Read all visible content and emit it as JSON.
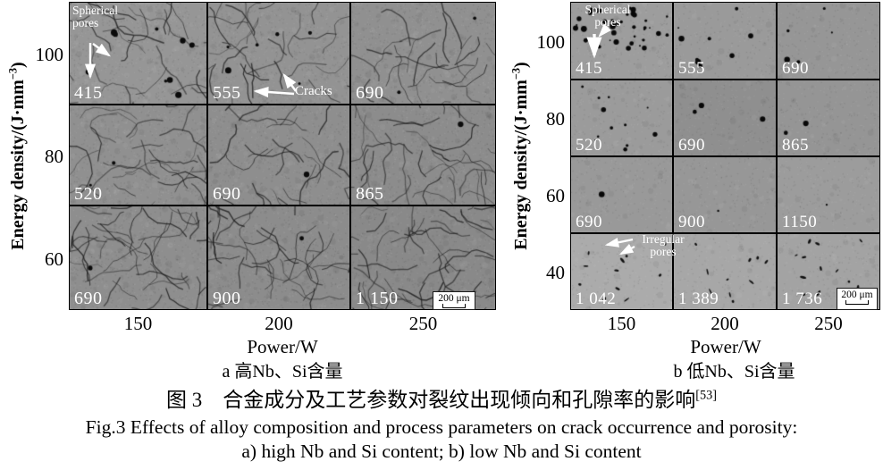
{
  "panels": {
    "a": {
      "y_axis": {
        "label_pre": "Energy density/(J·mm",
        "label_sup": "−3",
        "label_post": ")",
        "ticks": [
          "100",
          "80",
          "60"
        ]
      },
      "x_axis": {
        "label": "Power/W",
        "ticks": [
          "150",
          "200",
          "250"
        ]
      },
      "rows": [
        [
          "415",
          "555",
          "690"
        ],
        [
          "520",
          "690",
          "865"
        ],
        [
          "690",
          "900",
          "1 150"
        ]
      ],
      "annotations": {
        "spherical_pores": "Spherical pores",
        "cracks": "Cracks"
      },
      "scale_bar": "200 μm",
      "caption": "a 高Nb、Si含量"
    },
    "b": {
      "y_axis": {
        "label_pre": "Energy density/(J·mm",
        "label_sup": "−3",
        "label_post": ")",
        "ticks": [
          "100",
          "80",
          "60",
          "40"
        ]
      },
      "x_axis": {
        "label": "Power/W",
        "ticks": [
          "150",
          "200",
          "250"
        ]
      },
      "rows": [
        [
          "415",
          "555",
          "690"
        ],
        [
          "520",
          "690",
          "865"
        ],
        [
          "690",
          "900",
          "1150"
        ],
        [
          "1 042",
          "1 389",
          "1 736"
        ]
      ],
      "annotations": {
        "spherical_pores": "Spherical pores",
        "irregular_pores": "Irregular pores"
      },
      "scale_bar": "200 μm",
      "caption": "b 低Nb、Si含量"
    }
  },
  "captions": {
    "zh_main": "图 3　合金成分及工艺参数对裂纹出现倾向和孔隙率的影响",
    "zh_ref_sup": "[53]",
    "en_line1": "Fig.3 Effects of alloy composition and process parameters on crack occurrence and porosity:",
    "en_line2": "a) high Nb and Si content; b) low Nb and Si content"
  }
}
